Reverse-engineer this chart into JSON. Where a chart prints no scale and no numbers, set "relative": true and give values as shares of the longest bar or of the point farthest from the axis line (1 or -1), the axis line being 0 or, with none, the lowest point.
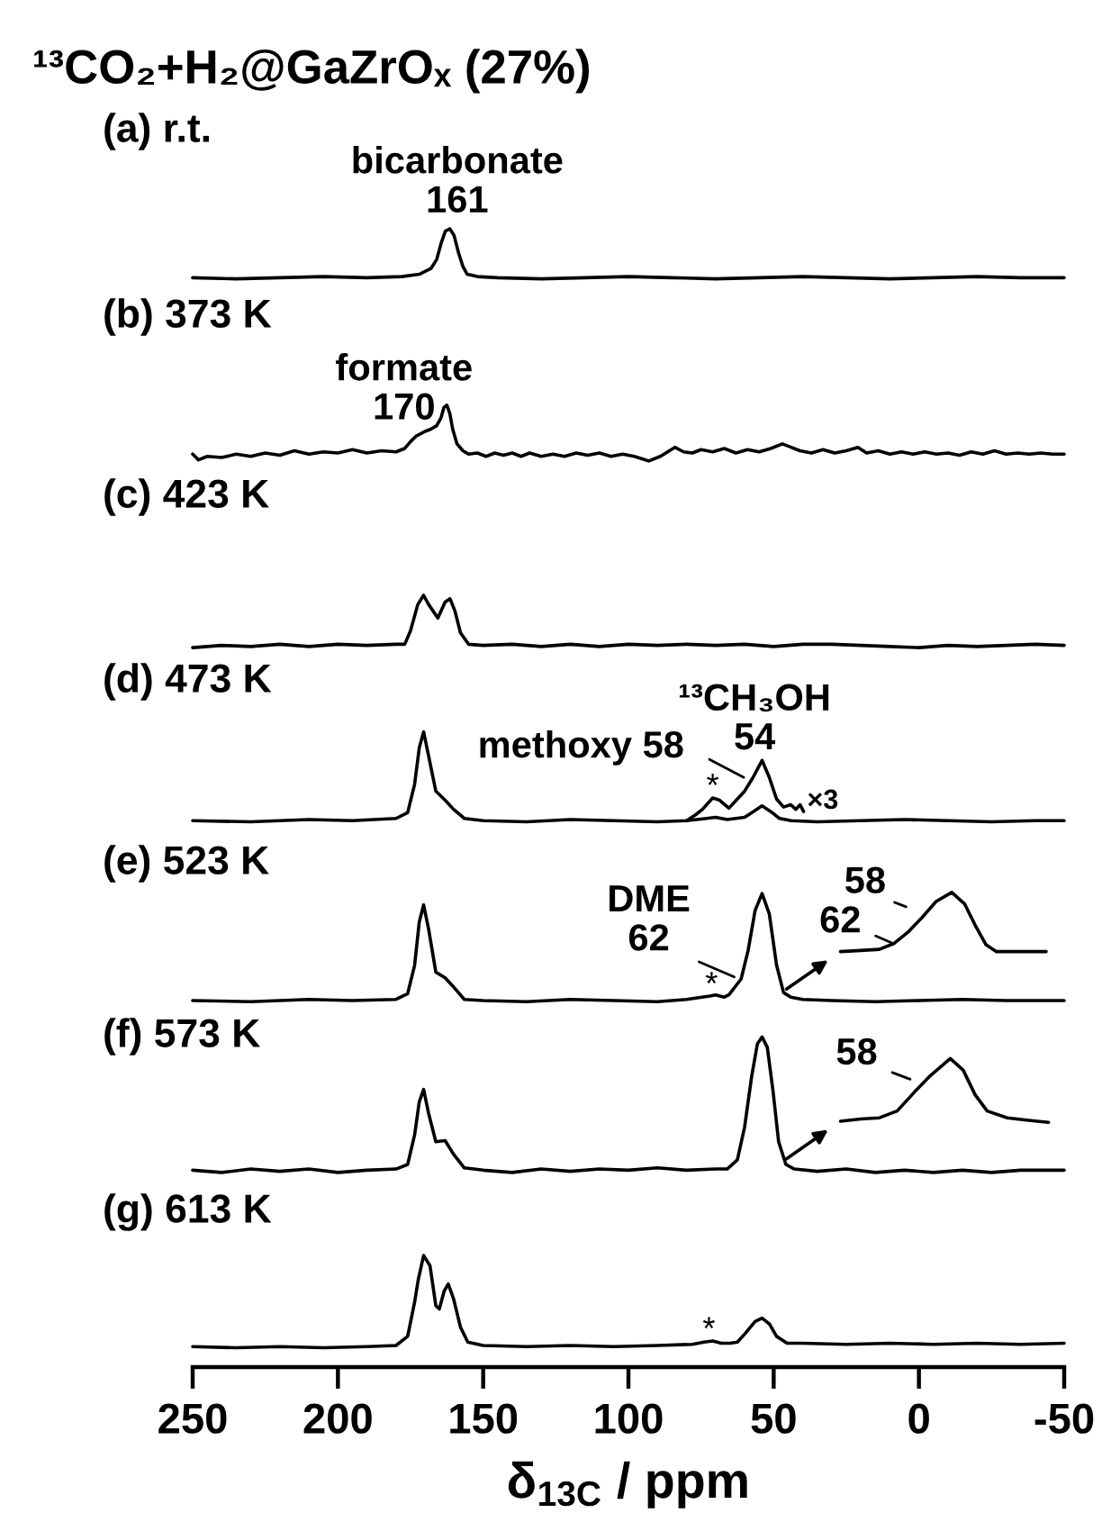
{
  "chart_data": {
    "type": "line",
    "title": "¹³CO₂+H₂@GaZrOₓ (27%)",
    "xlabel": "δ$_{13C}$ / ppm",
    "xlim": [
      250,
      -50
    ],
    "xticks": [
      250,
      200,
      150,
      100,
      50,
      0,
      -50
    ],
    "relative": true,
    "tick_labels": "x",
    "series": [
      {
        "color": "#000000",
        "x": [
          250,
          235,
          220,
          205,
          190,
          178,
          172,
          168,
          166,
          164.5,
          163,
          161.5,
          160,
          158.5,
          157,
          155.5,
          152,
          145,
          130,
          115,
          100,
          85,
          70,
          55,
          40,
          25,
          10,
          -5,
          -20,
          -35,
          -50
        ],
        "values": [
          0.957,
          0.956,
          0.957,
          0.958,
          0.957,
          0.958,
          0.96,
          0.965,
          0.973,
          0.987,
          0.998,
          1.0,
          0.994,
          0.979,
          0.967,
          0.96,
          0.958,
          0.957,
          0.956,
          0.957,
          0.958,
          0.957,
          0.956,
          0.957,
          0.958,
          0.957,
          0.956,
          0.957,
          0.958,
          0.957,
          0.957
        ]
      },
      {
        "color": "#000000",
        "x": [
          250,
          248,
          245,
          240,
          235,
          230,
          225,
          220,
          215,
          210,
          205,
          200,
          195,
          190,
          185,
          180,
          177,
          175,
          173,
          170,
          168,
          166,
          164.5,
          163.5,
          162.5,
          161.5,
          160.5,
          159,
          157,
          155,
          152,
          149,
          146,
          143,
          140,
          137,
          134,
          130,
          126,
          122,
          118,
          114,
          110,
          106,
          102,
          98,
          93,
          89,
          84,
          81,
          78,
          75,
          71,
          67,
          63,
          59,
          55,
          51,
          47,
          44,
          41,
          37,
          33,
          29,
          25,
          21,
          18,
          14,
          10,
          6,
          2,
          -2,
          -6,
          -10,
          -14,
          -18,
          -22,
          -26,
          -30,
          -34,
          -38,
          -42,
          -46,
          -50
        ],
        "values": [
          0.802,
          0.797,
          0.8,
          0.799,
          0.802,
          0.8,
          0.803,
          0.801,
          0.805,
          0.802,
          0.804,
          0.803,
          0.806,
          0.803,
          0.805,
          0.804,
          0.807,
          0.813,
          0.818,
          0.822,
          0.824,
          0.827,
          0.834,
          0.843,
          0.845,
          0.838,
          0.824,
          0.811,
          0.805,
          0.802,
          0.803,
          0.8,
          0.803,
          0.801,
          0.803,
          0.8,
          0.803,
          0.8,
          0.802,
          0.8,
          0.803,
          0.801,
          0.803,
          0.8,
          0.802,
          0.8,
          0.796,
          0.8,
          0.808,
          0.804,
          0.803,
          0.806,
          0.804,
          0.807,
          0.803,
          0.806,
          0.804,
          0.807,
          0.811,
          0.808,
          0.805,
          0.803,
          0.806,
          0.803,
          0.805,
          0.808,
          0.803,
          0.805,
          0.802,
          0.804,
          0.802,
          0.804,
          0.802,
          0.803,
          0.801,
          0.804,
          0.802,
          0.805,
          0.802,
          0.803,
          0.802,
          0.803,
          0.802,
          0.802
        ]
      },
      {
        "color": "#000000",
        "x": [
          250,
          240,
          230,
          220,
          210,
          200,
          190,
          180,
          177,
          175,
          172.5,
          170.5,
          168.8,
          165.6,
          163.1,
          161.4,
          159.7,
          157.8,
          155,
          150,
          140,
          130,
          120,
          110,
          100,
          90,
          80,
          70,
          60,
          50,
          40,
          30,
          20,
          10,
          0,
          -10,
          -20,
          -30,
          -40,
          -50
        ],
        "values": [
          0.632,
          0.634,
          0.633,
          0.635,
          0.633,
          0.635,
          0.634,
          0.635,
          0.635,
          0.647,
          0.67,
          0.678,
          0.67,
          0.658,
          0.672,
          0.675,
          0.664,
          0.645,
          0.635,
          0.634,
          0.635,
          0.633,
          0.635,
          0.633,
          0.635,
          0.634,
          0.635,
          0.634,
          0.635,
          0.633,
          0.635,
          0.635,
          0.634,
          0.633,
          0.632,
          0.634,
          0.633,
          0.634,
          0.635,
          0.634
        ]
      },
      {
        "color": "#000000",
        "x": [
          250,
          230,
          210,
          195,
          180,
          176,
          173.6,
          172,
          170.5,
          168.8,
          166.3,
          163.1,
          160.2,
          156.5,
          150,
          135,
          120,
          105,
          90,
          80,
          73,
          70,
          66,
          60,
          57,
          54,
          51,
          48,
          44,
          35,
          20,
          5,
          -10,
          -25,
          -40,
          -50
        ],
        "values": [
          0.48,
          0.479,
          0.481,
          0.48,
          0.482,
          0.487,
          0.512,
          0.544,
          0.558,
          0.537,
          0.506,
          0.498,
          0.49,
          0.482,
          0.48,
          0.479,
          0.481,
          0.48,
          0.479,
          0.48,
          0.482,
          0.483,
          0.481,
          0.483,
          0.488,
          0.493,
          0.488,
          0.482,
          0.48,
          0.479,
          0.48,
          0.481,
          0.48,
          0.479,
          0.48,
          0.48
        ]
      },
      {
        "color": "#000000",
        "x": [
          80,
          77,
          74.5,
          71,
          68.6,
          65.4,
          62.5,
          60,
          57.1,
          54,
          51.5,
          49,
          46.6,
          44.1,
          42.4,
          40.9,
          39.7
        ],
        "values": [
          0.48,
          0.485,
          0.49,
          0.5,
          0.498,
          0.491,
          0.499,
          0.506,
          0.518,
          0.533,
          0.518,
          0.499,
          0.492,
          0.494,
          0.49,
          0.494,
          0.488
        ]
      },
      {
        "color": "#000000",
        "x": [
          250,
          230,
          210,
          195,
          180,
          176,
          173.6,
          172,
          170.5,
          168.8,
          166.3,
          163.1,
          160.2,
          156.5,
          150,
          135,
          120,
          105,
          90,
          80,
          72,
          70,
          67,
          65.4,
          61.2,
          58.8,
          56.4,
          54,
          51.5,
          49,
          46.6,
          44.1,
          40,
          30,
          15,
          0,
          -15,
          -30,
          -50
        ],
        "values": [
          0.322,
          0.321,
          0.323,
          0.322,
          0.323,
          0.328,
          0.353,
          0.391,
          0.406,
          0.385,
          0.347,
          0.342,
          0.334,
          0.323,
          0.322,
          0.321,
          0.323,
          0.322,
          0.321,
          0.323,
          0.326,
          0.327,
          0.325,
          0.327,
          0.341,
          0.366,
          0.401,
          0.416,
          0.398,
          0.353,
          0.329,
          0.325,
          0.323,
          0.322,
          0.321,
          0.322,
          0.323,
          0.322,
          0.322
        ]
      },
      {
        "color": "#000000",
        "x": [
          27,
          20,
          13.6,
          8.7,
          3.8,
          -1.1,
          -5.9,
          -11.3,
          -15.7,
          -19.4,
          -23.1,
          -26.7,
          -35,
          -43.8
        ],
        "values": [
          0.365,
          0.366,
          0.367,
          0.372,
          0.382,
          0.395,
          0.409,
          0.417,
          0.407,
          0.388,
          0.371,
          0.365,
          0.365,
          0.365
        ]
      },
      {
        "color": "#000000",
        "x": [
          250,
          240,
          230,
          220,
          210,
          200,
          190,
          180,
          176,
          173.6,
          172,
          170.5,
          168.8,
          166.3,
          163.1,
          160.2,
          156.5,
          150,
          140,
          130,
          120,
          110,
          100,
          90,
          80,
          70,
          66,
          62.5,
          60,
          57.6,
          55.6,
          54,
          52.2,
          50.2,
          48.3,
          45.8,
          42.9,
          35,
          25,
          15,
          5,
          -5,
          -15,
          -25,
          -35,
          -50
        ],
        "values": [
          0.173,
          0.171,
          0.174,
          0.172,
          0.174,
          0.171,
          0.173,
          0.174,
          0.178,
          0.204,
          0.233,
          0.244,
          0.223,
          0.198,
          0.199,
          0.187,
          0.175,
          0.173,
          0.171,
          0.174,
          0.172,
          0.174,
          0.173,
          0.175,
          0.173,
          0.174,
          0.174,
          0.182,
          0.211,
          0.255,
          0.284,
          0.29,
          0.281,
          0.242,
          0.198,
          0.178,
          0.174,
          0.172,
          0.174,
          0.171,
          0.173,
          0.171,
          0.173,
          0.171,
          0.173,
          0.173
        ]
      },
      {
        "color": "#000000",
        "x": [
          27,
          20,
          13.6,
          7.5,
          1.4,
          -3.5,
          -10.8,
          -15.2,
          -19.4,
          -23.5,
          -30.4,
          -37,
          -44.6
        ],
        "values": [
          0.216,
          0.218,
          0.219,
          0.225,
          0.242,
          0.255,
          0.271,
          0.261,
          0.239,
          0.225,
          0.219,
          0.217,
          0.215
        ]
      },
      {
        "color": "#000000",
        "x": [
          250,
          235,
          220,
          205,
          190,
          180,
          176,
          173.6,
          172.4,
          170.5,
          168.3,
          166.3,
          165.1,
          163.4,
          162,
          160.2,
          157.8,
          155.3,
          150,
          135,
          120,
          105,
          90,
          78,
          74,
          71,
          68,
          65,
          62.5,
          60,
          56.4,
          54,
          51.5,
          49,
          45.4,
          40,
          25,
          10,
          -5,
          -20,
          -35,
          -50
        ],
        "values": [
          0.018,
          0.017,
          0.018,
          0.017,
          0.018,
          0.019,
          0.027,
          0.057,
          0.076,
          0.098,
          0.089,
          0.054,
          0.051,
          0.067,
          0.073,
          0.06,
          0.035,
          0.022,
          0.019,
          0.018,
          0.019,
          0.018,
          0.019,
          0.02,
          0.022,
          0.023,
          0.021,
          0.021,
          0.022,
          0.029,
          0.04,
          0.043,
          0.038,
          0.027,
          0.021,
          0.021,
          0.02,
          0.021,
          0.02,
          0.021,
          0.02,
          0.021
        ]
      }
    ],
    "annotations": [
      "(a) r.t.",
      "(b) 373 K",
      "(c) 423 K",
      "(d) 473 K",
      "(e) 523 K",
      "(f) 573 K",
      "(g) 613 K",
      {
        "text": "bicarbonate\n161",
        "x": 161,
        "y": 1.0
      },
      {
        "text": "formate\n170",
        "x": 170,
        "y": 0.822
      },
      {
        "text": "methoxy 58",
        "x": 58,
        "y": 0.515
      },
      {
        "text": "¹³CH₃OH\n54",
        "x": 54,
        "y": 0.533
      },
      {
        "text": "*",
        "x": 71,
        "y": 0.5
      },
      {
        "text": "×3",
        "x": 39.7,
        "y": 0.488
      },
      {
        "text": "DME\n62",
        "x": 62,
        "y": 0.341
      },
      {
        "text": "*",
        "x": 70,
        "y": 0.327
      },
      {
        "text": "58",
        "x": -2,
        "y": 0.398
      },
      {
        "text": "62",
        "x": 8.7,
        "y": 0.372
      },
      {
        "text": "58",
        "x": -1,
        "y": 0.249
      },
      {
        "text": "*",
        "x": 71,
        "y": 0.023
      }
    ]
  }
}
